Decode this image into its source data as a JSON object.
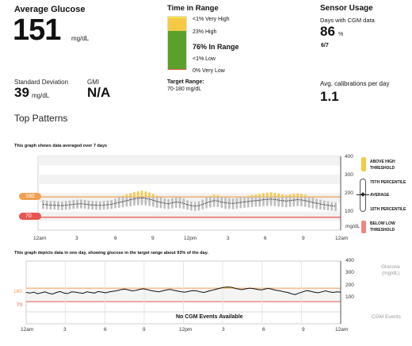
{
  "glucose": {
    "title": "Average Glucose",
    "value": "151",
    "unit": "mg/dL"
  },
  "std_dev": {
    "label": "Standard Deviation",
    "value": "39",
    "unit": "mg/dL"
  },
  "gmi": {
    "label": "GMI",
    "value": "N/A"
  },
  "time_in_range": {
    "title": "Time in Range",
    "very_high": "<1% Very High",
    "high": "23% High",
    "in_range": "76% In Range",
    "low": "<1% Low",
    "very_low": "0% Very Low",
    "target_label": "Target Range:",
    "target_value": "70-180 mg/dL",
    "high_pct": 23,
    "in_range_pct": 76,
    "colors": {
      "high": "#f6c945",
      "in_range": "#5aa12b",
      "very_high": "#f6e24a"
    }
  },
  "sensor": {
    "title": "Sensor Usage",
    "days_label": "Days with CGM data",
    "days_value": "86",
    "days_unit": "%",
    "days_fraction": "6/7",
    "calib_label": "Avg. calibrations per day",
    "calib_value": "1.1"
  },
  "patterns": {
    "title": "Top Patterns",
    "agp_caption": "This graph shows data averaged over 7 days",
    "day_caption": "This graph depicts data in one day, showing glucose in the target range about 93% of the day.",
    "high_pill": "180",
    "low_pill": "70",
    "low_line_label": "70",
    "high_line_label": "180",
    "y_unit": "mg/dL",
    "glucose_axis_label_1": "Glucose",
    "glucose_axis_label_2": "(mg/dL)",
    "events_label": "CGM Events",
    "no_events": "No CGM Events Available"
  },
  "legend": {
    "above_1": "ABOVE HIGH",
    "above_2": "THRESHOLD",
    "p75": "75TH PERCENTILE",
    "avg": "AVERAGE",
    "p15": "15TH PERCENTILE",
    "below_1": "BELOW LOW",
    "below_2": "THRESHOLD"
  },
  "chart_data": [
    {
      "type": "bar",
      "title": "This graph shows data averaged over 7 days",
      "ylabel": "mg/dL",
      "ylim": [
        0,
        400
      ],
      "yticks": [
        "400",
        "300",
        "200",
        "100"
      ],
      "xticks": [
        "12am",
        "3",
        "6",
        "9",
        "12pm",
        "3",
        "6",
        "9",
        "12am"
      ],
      "high_threshold": 180,
      "low_threshold": 70,
      "series": [
        {
          "name": "AVERAGE",
          "values": [
            140,
            138,
            136,
            136,
            134,
            133,
            135,
            137,
            140,
            142,
            143,
            141,
            138,
            136,
            135,
            134,
            136,
            138,
            140,
            145,
            150,
            155,
            160,
            165,
            170,
            173,
            175,
            172,
            168,
            162,
            155,
            150,
            146,
            143,
            148,
            152,
            150,
            145,
            138,
            133,
            130,
            133,
            140,
            148,
            155,
            160,
            158,
            152,
            148,
            146,
            145,
            147,
            150,
            153,
            155,
            158,
            160,
            162,
            165,
            167,
            168,
            166,
            163,
            160,
            158,
            160,
            163,
            165,
            164,
            160,
            155,
            150,
            146,
            142,
            138,
            135,
            132,
            130
          ]
        },
        {
          "name": "75TH PERCENTILE",
          "values": [
            162,
            160,
            158,
            158,
            156,
            155,
            157,
            160,
            163,
            165,
            166,
            164,
            160,
            158,
            157,
            156,
            158,
            160,
            163,
            170,
            178,
            186,
            194,
            200,
            206,
            210,
            214,
            210,
            204,
            196,
            186,
            178,
            172,
            168,
            174,
            180,
            178,
            172,
            162,
            155,
            152,
            156,
            166,
            176,
            186,
            192,
            190,
            182,
            176,
            174,
            172,
            175,
            179,
            183,
            186,
            190,
            193,
            196,
            200,
            203,
            205,
            202,
            198,
            194,
            190,
            193,
            197,
            200,
            198,
            192,
            184,
            176,
            170,
            165,
            160,
            156,
            152,
            150
          ]
        },
        {
          "name": "15TH PERCENTILE",
          "values": [
            115,
            113,
            111,
            111,
            109,
            108,
            110,
            112,
            115,
            117,
            118,
            116,
            113,
            111,
            110,
            109,
            111,
            113,
            115,
            118,
            121,
            124,
            127,
            130,
            133,
            135,
            136,
            134,
            131,
            127,
            122,
            119,
            116,
            114,
            118,
            121,
            119,
            115,
            110,
            106,
            104,
            106,
            112,
            118,
            123,
            127,
            125,
            120,
            116,
            115,
            114,
            116,
            119,
            121,
            123,
            125,
            127,
            128,
            130,
            131,
            132,
            130,
            128,
            126,
            124,
            126,
            128,
            130,
            129,
            126,
            122,
            118,
            115,
            112,
            109,
            107,
            105,
            103
          ]
        }
      ]
    },
    {
      "type": "line",
      "title": "This graph depicts data in one day, showing glucose in the target range about 93% of the day.",
      "ylabel": "Glucose (mg/dL)",
      "ylim": [
        0,
        400
      ],
      "yticks": [
        "400",
        "300",
        "200",
        "100"
      ],
      "xticks": [
        "12am",
        "3",
        "6",
        "9",
        "12pm",
        "3",
        "6",
        "9",
        "12am"
      ],
      "high_threshold": 180,
      "low_threshold": 70,
      "series": [
        {
          "name": "Glucose",
          "values": [
            145,
            140,
            148,
            135,
            142,
            150,
            138,
            132,
            145,
            152,
            140,
            136,
            150,
            148,
            142,
            138,
            150,
            145,
            140,
            152,
            148,
            142,
            150,
            155,
            160,
            168,
            172,
            165,
            158,
            162,
            170,
            175,
            168,
            160,
            155,
            150,
            158,
            165,
            170,
            162,
            156,
            150,
            148,
            155,
            160,
            158,
            150,
            145,
            155,
            162,
            170,
            178,
            185,
            190,
            188,
            180,
            172,
            168,
            175,
            180,
            176,
            170,
            165,
            172,
            178,
            170,
            162,
            158,
            150,
            145,
            135,
            128,
            140,
            150,
            160,
            155,
            148,
            142,
            150,
            158,
            150,
            145,
            150,
            148
          ]
        }
      ]
    }
  ]
}
